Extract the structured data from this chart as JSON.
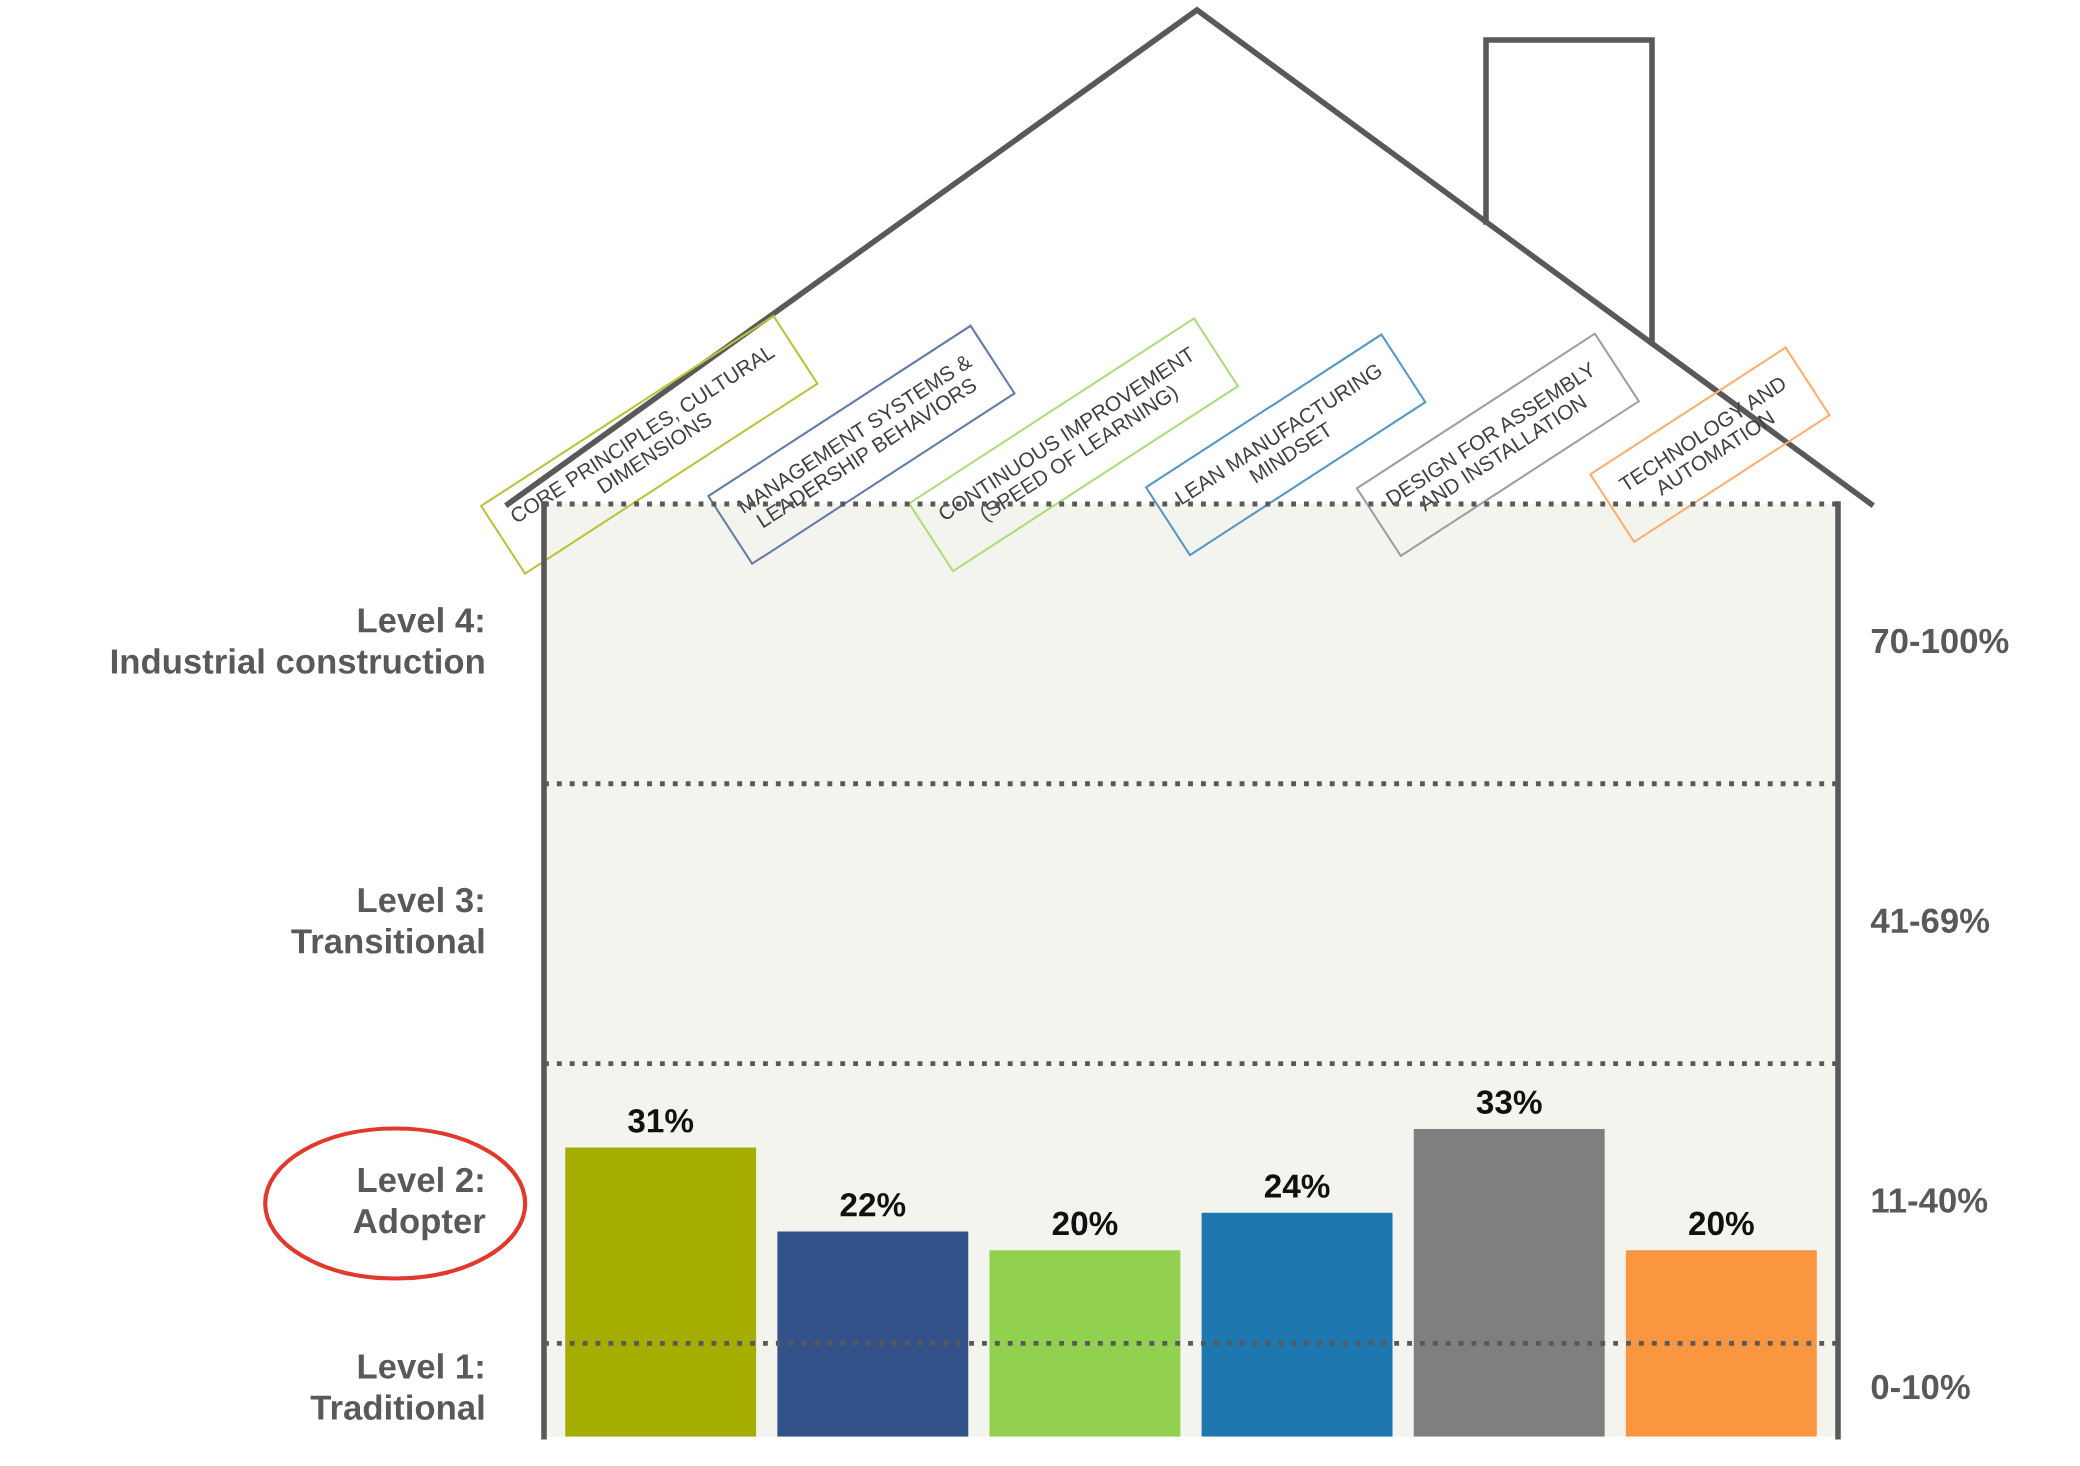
{
  "chart_data": {
    "type": "bar",
    "categories": [
      "CORE PRINCIPLES, CULTURAL\nDIMENSIONS",
      "MANAGEMENT SYSTEMS &\nLEADERSHIP BEHAVIORS",
      "CONTINUOUS IMPROVEMENT\n(SPEED OF LEARNING)",
      "LEAN MANUFACTURING\nMINDSET",
      "DESIGN FOR ASSEMBLY\nAND INSTALLATION",
      "TECHNOLOGY AND\nAUTOMATION"
    ],
    "values": [
      31,
      22,
      20,
      24,
      33,
      20
    ],
    "colors": [
      "#a5ae00",
      "#33528a",
      "#92d050",
      "#1f77b0",
      "#7f7f7f",
      "#fb9640"
    ],
    "value_labels": [
      "31%",
      "22%",
      "20%",
      "24%",
      "33%",
      "20%"
    ],
    "ylim": [
      0,
      100
    ],
    "tick_labels": "x",
    "legend": false,
    "grid": false,
    "bands": [
      {
        "axis": "y",
        "from": 0,
        "to": 10,
        "label": "0-10%",
        "color": "#f4f4ef"
      },
      {
        "axis": "y",
        "from": 10,
        "to": 40,
        "label": "11-40%",
        "color": "#f4f4ef"
      },
      {
        "axis": "y",
        "from": 40,
        "to": 70,
        "label": "41-69%",
        "color": "#f4f4ef"
      },
      {
        "axis": "y",
        "from": 70,
        "to": 100,
        "label": "70-100%",
        "color": "#f4f4ef"
      }
    ],
    "ref_lines": [
      {
        "axis": "y",
        "value": 10,
        "color": "#595959",
        "line_style": "dotted"
      },
      {
        "axis": "y",
        "value": 40,
        "color": "#595959",
        "line_style": "dotted"
      },
      {
        "axis": "y",
        "value": 70,
        "color": "#595959",
        "line_style": "dotted"
      },
      {
        "axis": "y",
        "value": 100,
        "color": "#595959",
        "line_style": "dotted"
      }
    ],
    "annotations": [
      "Level 1:\nTraditional",
      "Level 2:\nAdopter",
      "Level 3:\nTransitional",
      "Level 4:\nIndustrial construction"
    ]
  }
}
